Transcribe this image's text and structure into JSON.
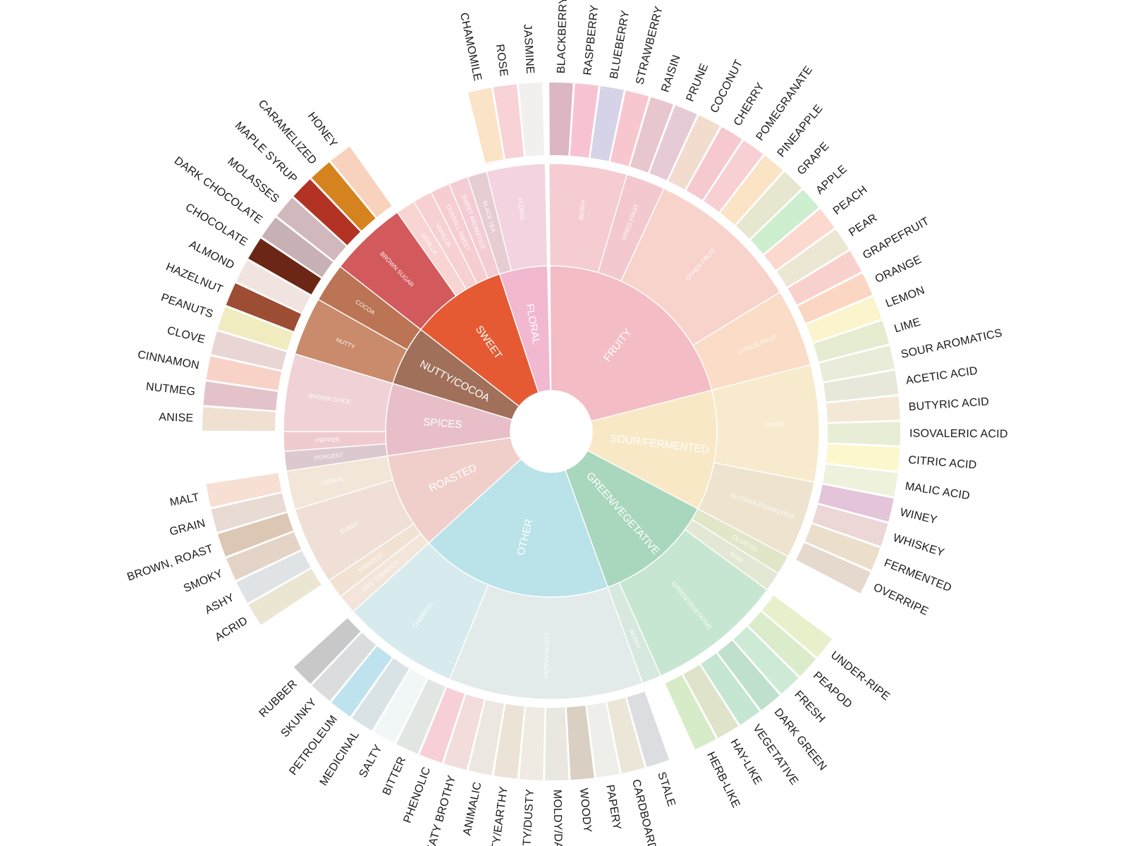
{
  "chart_data": {
    "type": "sunburst",
    "categories": [
      {
        "name": "FRUITY",
        "color": "#f4bcc4",
        "children": [
          {
            "name": "BERRY",
            "color": "#f4ccd2",
            "children": [
              {
                "name": "BLACKBERRY",
                "color": "#dcb6c2"
              },
              {
                "name": "RASPBERRY",
                "color": "#f7c3d3"
              },
              {
                "name": "BLUEBERRY",
                "color": "#d6d3e8"
              },
              {
                "name": "STRAWBERRY",
                "color": "#f8c6cf"
              }
            ]
          },
          {
            "name": "DRIED FRUIT",
            "color": "#f3c8cf",
            "children": [
              {
                "name": "RAISIN",
                "color": "#e8c6cd"
              },
              {
                "name": "PRUNE",
                "color": "#e6cad6"
              }
            ]
          },
          {
            "name": "OTHER FRUIT",
            "color": "#f8d3cc",
            "children": [
              {
                "name": "COCONUT",
                "color": "#f1dccd"
              },
              {
                "name": "CHERRY",
                "color": "#f6c8d0"
              },
              {
                "name": "POMEGRANATE",
                "color": "#f8cfd2"
              },
              {
                "name": "PINEAPPLE",
                "color": "#fbe3c6"
              },
              {
                "name": "GRAPE",
                "color": "#e7e6cf"
              },
              {
                "name": "APPLE",
                "color": "#cdeecf"
              },
              {
                "name": "PEACH",
                "color": "#fbd9cf"
              },
              {
                "name": "PEAR",
                "color": "#ebe7d3"
              }
            ]
          },
          {
            "name": "CITRUS FRUIT",
            "color": "#fbdcc6",
            "children": [
              {
                "name": "GRAPEFRUIT",
                "color": "#f8d1cd"
              },
              {
                "name": "ORANGE",
                "color": "#fad6c3"
              },
              {
                "name": "LEMON",
                "color": "#fcf4cc"
              },
              {
                "name": "LIME",
                "color": "#e5ecd0"
              }
            ]
          }
        ]
      },
      {
        "name": "SOUR/FERMENTED",
        "color": "#f8e8c6",
        "children": [
          {
            "name": "SOUR",
            "color": "#f8ebcd",
            "children": [
              {
                "name": "SOUR AROMATICS",
                "color": "#e9ecd8"
              },
              {
                "name": "ACETIC ACID",
                "color": "#e7e8da"
              },
              {
                "name": "BUTYRIC ACID",
                "color": "#f3e8d6"
              },
              {
                "name": "ISOVALERIC ACID",
                "color": "#e8eed6"
              },
              {
                "name": "CITRIC ACID",
                "color": "#fcf7cd"
              },
              {
                "name": "MALIC ACID",
                "color": "#eef1dc"
              }
            ]
          },
          {
            "name": "ALCOHOL/FERMENTED",
            "color": "#ede3cf",
            "children": [
              {
                "name": "WINEY",
                "color": "#e4c4d8"
              },
              {
                "name": "WHISKEY",
                "color": "#ecd6d6"
              },
              {
                "name": "FERMENTED",
                "color": "#ebdfcc"
              },
              {
                "name": "OVERRIPE",
                "color": "#e5d8cd"
              }
            ]
          }
        ]
      },
      {
        "name": "GREEN/VEGETATIVE",
        "color": "#a9d7bd",
        "children": [
          {
            "name": "OLIVE OIL",
            "color": "#e1e6c9",
            "children": []
          },
          {
            "name": "RAW",
            "color": "#e2e8d3",
            "children": []
          },
          {
            "name": "GREEN/VEGETATIVE",
            "color": "#c7e6d1",
            "children": [
              {
                "name": "UNDER-RIPE",
                "color": "#e8efcb"
              },
              {
                "name": "PEAPOD",
                "color": "#dbeccb"
              },
              {
                "name": "FRESH",
                "color": "#cdebd4"
              },
              {
                "name": "DARK GREEN",
                "color": "#bfe0cc"
              },
              {
                "name": "VEGETATIVE",
                "color": "#c4e6d3"
              },
              {
                "name": "HAY-LIKE",
                "color": "#dfe3c9"
              },
              {
                "name": "HERB-LIKE",
                "color": "#d6ecc9"
              }
            ]
          },
          {
            "name": "BEANY",
            "color": "#d7e8de",
            "children": []
          }
        ]
      },
      {
        "name": "OTHER",
        "color": "#b9e2e9",
        "children": [
          {
            "name": "PAPERY/MUSTY",
            "color": "#e3eaea",
            "children": [
              {
                "name": "STALE",
                "color": "#dcdde1"
              },
              {
                "name": "CARDBOARD",
                "color": "#ece6d8"
              },
              {
                "name": "PAPERY",
                "color": "#eeeeea"
              },
              {
                "name": "WOODY",
                "color": "#d9cfc2"
              },
              {
                "name": "MOLDY/DAMP",
                "color": "#eae7e0"
              },
              {
                "name": "MUSTY/DUSTY",
                "color": "#efeae2"
              },
              {
                "name": "MUSTY/EARTHY",
                "color": "#ebe4d6"
              },
              {
                "name": "ANIMALIC",
                "color": "#ece7e0"
              },
              {
                "name": "MEATY BROTHY",
                "color": "#f2dcdc"
              },
              {
                "name": "PHENOLIC",
                "color": "#f6d0d6"
              }
            ]
          },
          {
            "name": "CHEMICAL",
            "color": "#d7ebee",
            "children": [
              {
                "name": "BITTER",
                "color": "#e1e6e3"
              },
              {
                "name": "SALTY",
                "color": "#f1f6f7"
              },
              {
                "name": "MEDICINAL",
                "color": "#d9e3e6"
              },
              {
                "name": "PETROLEUM",
                "color": "#bfe3ee"
              },
              {
                "name": "SKUNKY",
                "color": "#dadcdd"
              },
              {
                "name": "RUBBER",
                "color": "#c8c8c8"
              }
            ]
          }
        ]
      },
      {
        "name": "ROASTED",
        "color": "#f0cfcb",
        "children": [
          {
            "name": "PIPE TOBACCO",
            "color": "#f3e5da",
            "children": []
          },
          {
            "name": "TOBACCO",
            "color": "#f2e2d3",
            "children": []
          },
          {
            "name": "BURNT",
            "color": "#efdfd7",
            "children": [
              {
                "name": "ACRID",
                "color": "#ebe6d2"
              },
              {
                "name": "ASHY",
                "color": "#dfe3e5"
              },
              {
                "name": "SMOKY",
                "color": "#e4d4c7"
              },
              {
                "name": "BROWN, ROAST",
                "color": "#dcc7b5"
              }
            ]
          },
          {
            "name": "CEREAL",
            "color": "#f2e6d8",
            "children": [
              {
                "name": "GRAIN",
                "color": "#e7dbd3"
              },
              {
                "name": "MALT",
                "color": "#f8dfd3"
              }
            ]
          }
        ]
      },
      {
        "name": "SPICES",
        "color": "#e8bfc8",
        "children": [
          {
            "name": "PUNGENT",
            "color": "#dcc8cf",
            "children": []
          },
          {
            "name": "PEPPER",
            "color": "#efcbd0",
            "children": []
          },
          {
            "name": "BROWN SPICE",
            "color": "#f0d2d6",
            "children": [
              {
                "name": "ANISE",
                "color": "#efe0d2"
              },
              {
                "name": "NUTMEG",
                "color": "#e3c3c9"
              },
              {
                "name": "CINNAMON",
                "color": "#f8d2c7"
              },
              {
                "name": "CLOVE",
                "color": "#ead5d5"
              }
            ]
          }
        ]
      },
      {
        "name": "NUTTY/COCOA",
        "color": "#a0705a",
        "children": [
          {
            "name": "NUTTY",
            "color": "#c98b6c",
            "children": [
              {
                "name": "PEANUTS",
                "color": "#f0ecbf"
              },
              {
                "name": "HAZELNUT",
                "color": "#9d4d33"
              },
              {
                "name": "ALMOND",
                "color": "#f1e3df"
              }
            ]
          },
          {
            "name": "COCOA",
            "color": "#bb7554",
            "children": [
              {
                "name": "CHOCOLATE",
                "color": "#6b2616"
              },
              {
                "name": "DARK CHOCOLATE",
                "color": "#c7b1b4"
              }
            ]
          }
        ]
      },
      {
        "name": "SWEET",
        "color": "#e55a33",
        "children": [
          {
            "name": "BROWN SUGAR",
            "color": "#d35a5c",
            "children": [
              {
                "name": "MOLASSES",
                "color": "#d0b8bd"
              },
              {
                "name": "MAPLE SYRUP",
                "color": "#b23324"
              },
              {
                "name": "CARAMELIZED",
                "color": "#d4831f"
              },
              {
                "name": "HONEY",
                "color": "#f8d2bc"
              }
            ]
          },
          {
            "name": "VANILLA",
            "color": "#f8d4d2",
            "children": []
          },
          {
            "name": "VANILLIN",
            "color": "#f7d0d2",
            "children": []
          },
          {
            "name": "OVERALL SWEET",
            "color": "#f6cdd0",
            "children": []
          },
          {
            "name": "SWEET AROMATICS",
            "color": "#f3cdd3",
            "children": []
          }
        ]
      },
      {
        "name": "FLORAL",
        "color": "#f1b8cf",
        "children": [
          {
            "name": "BLACK TEA",
            "color": "#e6cdd2",
            "children": []
          },
          {
            "name": "FLORAL",
            "color": "#f3d3df",
            "children": [
              {
                "name": "CHAMOMILE",
                "color": "#fbe3c7"
              },
              {
                "name": "ROSE",
                "color": "#f8d2d6"
              },
              {
                "name": "JASMINE",
                "color": "#f2f0ee"
              }
            ]
          }
        ]
      }
    ]
  }
}
